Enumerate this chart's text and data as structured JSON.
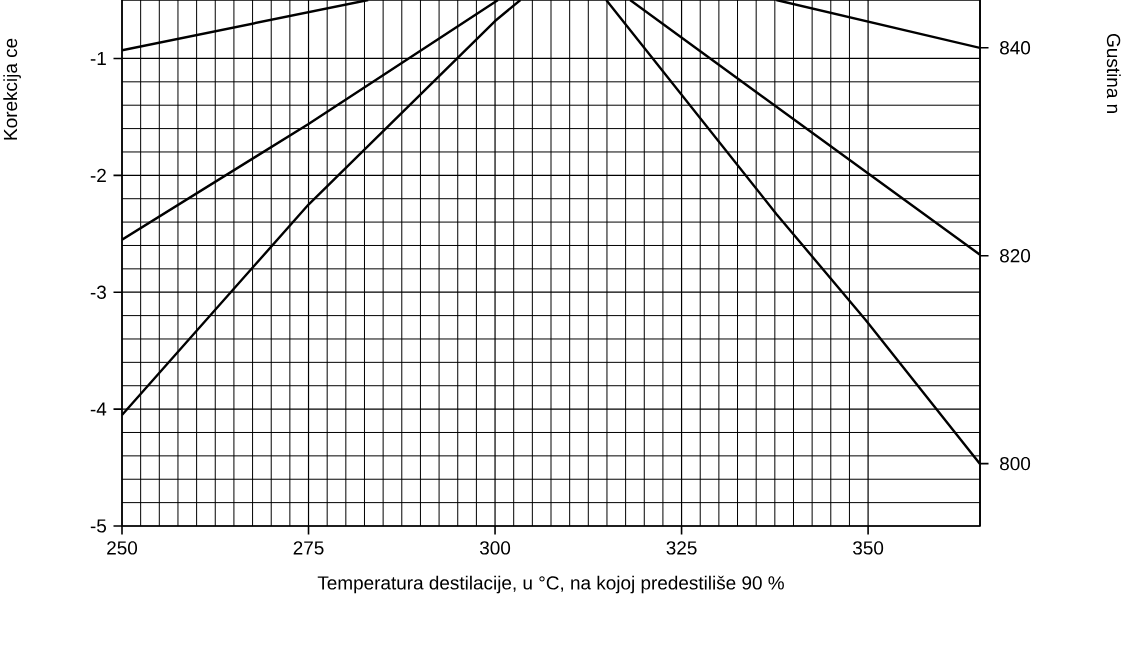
{
  "chart_data": {
    "type": "line",
    "xlabel": "Temperatura destilacije, u °C, na kojoj predestiliše 90 %",
    "ylabel": "Korekcija ce",
    "y2label": "Gustina n",
    "xlim": [
      250,
      365
    ],
    "ylim": [
      -5,
      -0.5
    ],
    "xticks": [
      250,
      275,
      300,
      325,
      350
    ],
    "yticks": [
      -5,
      -4,
      -3,
      -2,
      -1
    ],
    "y2lim": [
      794,
      844.6
    ],
    "y2ticks": [
      800,
      820,
      840
    ],
    "grid": true,
    "marker": "none",
    "line_style": "solid",
    "series": [
      {
        "color": "#000000",
        "x": [
          250,
          283
        ],
        "values": [
          -0.93,
          -0.5
        ]
      },
      {
        "color": "#000000",
        "x": [
          250,
          275,
          300.4
        ],
        "values": [
          -2.55,
          -1.56,
          -0.5
        ]
      },
      {
        "color": "#000000",
        "x": [
          250,
          275,
          300,
          303.4
        ],
        "values": [
          -4.05,
          -2.25,
          -0.68,
          -0.5
        ]
      },
      {
        "color": "#000000",
        "x": [
          337.7,
          365
        ],
        "values": [
          -0.5,
          -0.91
        ]
      },
      {
        "color": "#000000",
        "x": [
          318.1,
          335.5,
          365
        ],
        "values": [
          -0.5,
          -1.31,
          -2.68
        ]
      },
      {
        "color": "#000000",
        "x": [
          314.9,
          337.7,
          349.7,
          365
        ],
        "values": [
          -0.5,
          -2.33,
          -3.24,
          -4.47
        ]
      }
    ]
  }
}
